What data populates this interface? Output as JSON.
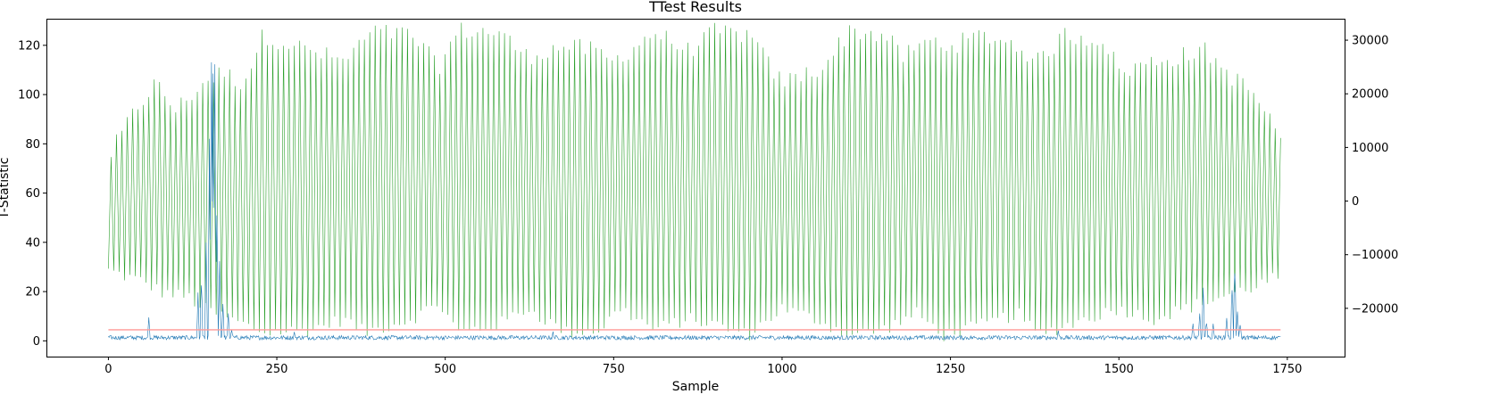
{
  "chart_data": {
    "type": "line",
    "title": "TTest Results",
    "xlabel": "Sample",
    "ylabel": "T-Statistic",
    "xlim": [
      -92,
      1835
    ],
    "ylim": [
      -6.4,
      130.8
    ],
    "y2lim": [
      -29000,
      34000
    ],
    "x_ticks": [
      0,
      250,
      500,
      750,
      1000,
      1250,
      1500,
      1750
    ],
    "y_ticks": [
      0,
      20,
      40,
      60,
      80,
      100,
      120
    ],
    "y2_ticks": [
      -20000,
      -10000,
      0,
      10000,
      20000,
      30000
    ],
    "grid": false,
    "series": [
      {
        "axis": "right",
        "color": "#2ca02c",
        "style": "dense oscillating trace, one full cycle every ~8 samples",
        "x_range": [
          0,
          1740
        ],
        "upper_envelope": [
          [
            0,
            8000
          ],
          [
            40,
            17000
          ],
          [
            70,
            22000
          ],
          [
            100,
            17000
          ],
          [
            140,
            22000
          ],
          [
            170,
            24000
          ],
          [
            200,
            22000
          ],
          [
            230,
            31000
          ],
          [
            300,
            28000
          ],
          [
            350,
            26000
          ],
          [
            390,
            31500
          ],
          [
            450,
            31000
          ],
          [
            490,
            25000
          ],
          [
            520,
            31800
          ],
          [
            580,
            31500
          ],
          [
            620,
            27000
          ],
          [
            680,
            29000
          ],
          [
            720,
            28000
          ],
          [
            750,
            26000
          ],
          [
            810,
            31500
          ],
          [
            860,
            28000
          ],
          [
            900,
            31500
          ],
          [
            950,
            31000
          ],
          [
            1000,
            22000
          ],
          [
            1060,
            25000
          ],
          [
            1100,
            31800
          ],
          [
            1150,
            31000
          ],
          [
            1180,
            27000
          ],
          [
            1220,
            30000
          ],
          [
            1250,
            29000
          ],
          [
            1300,
            31000
          ],
          [
            1350,
            29000
          ],
          [
            1380,
            26000
          ],
          [
            1420,
            31000
          ],
          [
            1480,
            30000
          ],
          [
            1500,
            24000
          ],
          [
            1550,
            26000
          ],
          [
            1630,
            28000
          ],
          [
            1660,
            24000
          ],
          [
            1700,
            20000
          ],
          [
            1740,
            12000
          ]
        ],
        "lower_envelope": [
          [
            0,
            -13000
          ],
          [
            50,
            -15000
          ],
          [
            80,
            -17000
          ],
          [
            120,
            -18000
          ],
          [
            140,
            -20000
          ],
          [
            180,
            -22000
          ],
          [
            230,
            -24500
          ],
          [
            300,
            -24000
          ],
          [
            350,
            -22000
          ],
          [
            380,
            -24500
          ],
          [
            450,
            -22000
          ],
          [
            490,
            -19000
          ],
          [
            520,
            -24500
          ],
          [
            580,
            -23000
          ],
          [
            620,
            -20000
          ],
          [
            680,
            -24500
          ],
          [
            730,
            -24000
          ],
          [
            760,
            -20000
          ],
          [
            810,
            -24000
          ],
          [
            860,
            -22000
          ],
          [
            900,
            -23000
          ],
          [
            950,
            -25000
          ],
          [
            1000,
            -20000
          ],
          [
            1050,
            -22000
          ],
          [
            1100,
            -25000
          ],
          [
            1150,
            -24000
          ],
          [
            1200,
            -21000
          ],
          [
            1240,
            -25000
          ],
          [
            1300,
            -23000
          ],
          [
            1350,
            -21000
          ],
          [
            1380,
            -25000
          ],
          [
            1450,
            -22000
          ],
          [
            1500,
            -20000
          ],
          [
            1550,
            -22000
          ],
          [
            1600,
            -20000
          ],
          [
            1650,
            -18000
          ],
          [
            1700,
            -16000
          ],
          [
            1740,
            -14000
          ]
        ]
      },
      {
        "axis": "left",
        "color": "#1f77b4",
        "style": "noisy baseline near 1-2 with spikes",
        "x_range": [
          0,
          1740
        ],
        "baseline": 1.3,
        "noise_amplitude": 1.1,
        "spikes": [
          [
            60,
            10
          ],
          [
            133,
            20
          ],
          [
            138,
            32
          ],
          [
            145,
            40
          ],
          [
            150,
            85
          ],
          [
            153,
            124
          ],
          [
            155,
            110
          ],
          [
            158,
            122
          ],
          [
            161,
            60
          ],
          [
            165,
            35
          ],
          [
            170,
            18
          ],
          [
            178,
            12
          ],
          [
            183,
            6
          ],
          [
            276,
            4
          ],
          [
            660,
            4
          ],
          [
            1410,
            5
          ],
          [
            1610,
            8
          ],
          [
            1620,
            12
          ],
          [
            1625,
            24
          ],
          [
            1630,
            10
          ],
          [
            1640,
            8
          ],
          [
            1660,
            12
          ],
          [
            1668,
            28
          ],
          [
            1672,
            36
          ],
          [
            1676,
            15
          ],
          [
            1680,
            8
          ]
        ]
      },
      {
        "axis": "left",
        "color": "#ff9896",
        "style": "horizontal threshold line",
        "x": [
          0,
          1740
        ],
        "y": [
          4.5,
          4.5
        ]
      }
    ]
  }
}
